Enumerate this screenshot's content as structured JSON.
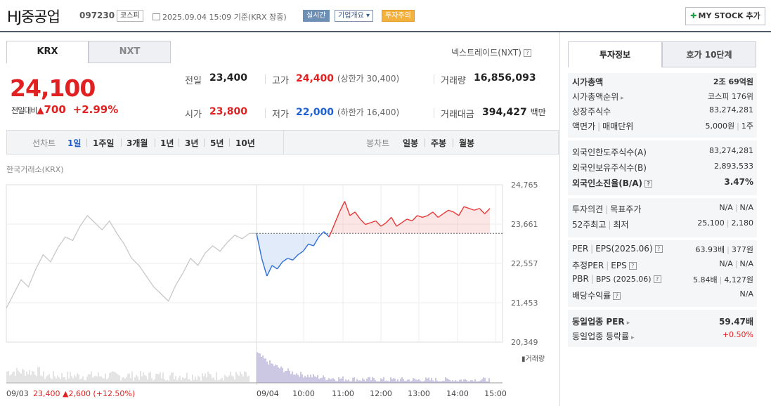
{
  "header": {
    "name": "HJ중공업",
    "code": "097230",
    "market_badge": "코스피",
    "date": "2025.09.04 15:09",
    "basis": "기준(KRX 장중)",
    "realtime_btn": "실시간",
    "overview_btn": "기업개요",
    "caution_badge": "투자주의",
    "mystock_btn": "MY STOCK 추가"
  },
  "market_tabs": [
    "KRX",
    "NXT"
  ],
  "nxt_trade_label": "넥스트레이드(NXT)",
  "price": {
    "current": "24,100",
    "change_label": "전일대비",
    "change_abs": "700",
    "change_pct": "+2.99%"
  },
  "stats": {
    "prev_label": "전일",
    "prev": "23,400",
    "high_label": "고가",
    "high": "24,400",
    "upper_limit": "(상한가 30,400)",
    "volume_label": "거래량",
    "volume": "16,856,093",
    "open_label": "시가",
    "open": "23,800",
    "low_label": "저가",
    "low": "22,000",
    "lower_limit": "(하한가 16,400)",
    "amount_label": "거래대금",
    "amount": "394,427",
    "amount_unit": "백만"
  },
  "period_bar": {
    "line_label": "선차트",
    "line_items": [
      "1일",
      "1주일",
      "3개월",
      "1년",
      "3년",
      "5년",
      "10년"
    ],
    "active": "1일",
    "candle_label": "봉차트",
    "candle_items": [
      "일봉",
      "주봉",
      "월봉"
    ]
  },
  "exchange_label": "한국거래소(KRX)",
  "chart_data": {
    "type": "line",
    "title": "",
    "y_ticks": [
      "24,765",
      "23,661",
      "22,557",
      "21,453",
      "20,349"
    ],
    "ylim": [
      20349,
      24765
    ],
    "x_ticks": [
      "09/03",
      "09/04",
      "10:00",
      "11:00",
      "12:00",
      "13:00",
      "14:00",
      "15:00"
    ],
    "baseline": 23400,
    "volume_legend": "거래량",
    "prev_day_summary": {
      "date": "09/03",
      "close": "23,400",
      "change": "2,600",
      "pct": "(+12.50%)"
    },
    "series": [
      {
        "name": "",
        "segment": "09/03",
        "values": [
          21300,
          21700,
          22100,
          21900,
          22400,
          22800,
          22600,
          23000,
          23300,
          23200,
          23600,
          23900,
          23700,
          23500,
          23750,
          23400,
          23100,
          22700,
          22500,
          22200,
          21900,
          21700,
          21500,
          21950,
          22300,
          22700,
          22500,
          22850,
          23050,
          22900,
          23150,
          23350,
          23250,
          23400
        ]
      },
      {
        "name": "",
        "segment": "09/04",
        "values": [
          23400,
          22700,
          22200,
          22500,
          22400,
          22600,
          22700,
          22650,
          22800,
          22900,
          23100,
          23050,
          23300,
          23450,
          23300,
          23650,
          24000,
          24300,
          23900,
          24000,
          23800,
          23650,
          23700,
          23750,
          23600,
          23700,
          23850,
          23600,
          23700,
          23800,
          23750,
          23900,
          23850,
          23900,
          24000,
          23850,
          23950,
          24050,
          24000,
          23900,
          24150,
          24100,
          24050,
          24100,
          23950,
          24100
        ]
      }
    ]
  },
  "right_tabs": [
    "투자정보",
    "호가 10단계"
  ],
  "info": {
    "market_cap_label": "시가총액",
    "market_cap": "2조 69억원",
    "cap_rank_label": "시가총액순위",
    "cap_rank": "코스피 176위",
    "shares_label": "상장주식수",
    "shares": "83,274,281",
    "par_label": "액면가",
    "unit_label": "매매단위",
    "par": "5,000원",
    "unit": "1주",
    "foreign_limit_label": "외국인한도주식수(A)",
    "foreign_limit": "83,274,281",
    "foreign_hold_label": "외국인보유주식수(B)",
    "foreign_hold": "2,893,533",
    "foreign_ratio_label": "외국인소진율(B/A)",
    "foreign_ratio": "3.47%",
    "opinion_label": "투자의견",
    "target_label": "목표주가",
    "opinion": "N/A",
    "target": "N/A",
    "high52_label": "52주최고",
    "low52_label": "최저",
    "high52": "25,100",
    "low52": "2,180",
    "per_label": "PER",
    "eps_label": "EPS(2025.06)",
    "per": "63.93배",
    "eps": "377원",
    "est_per_label": "추정PER",
    "est_eps_label": "EPS",
    "est_per": "N/A",
    "est_eps": "N/A",
    "pbr_label": "PBR",
    "bps_label": "BPS (2025.06)",
    "pbr": "5.84배",
    "bps": "4,127원",
    "div_label": "배당수익률",
    "div": "N/A",
    "ind_per_label": "동일업종 PER",
    "ind_per": "59.47배",
    "ind_chg_label": "동일업종 등락률",
    "ind_chg": "+0.50%"
  }
}
